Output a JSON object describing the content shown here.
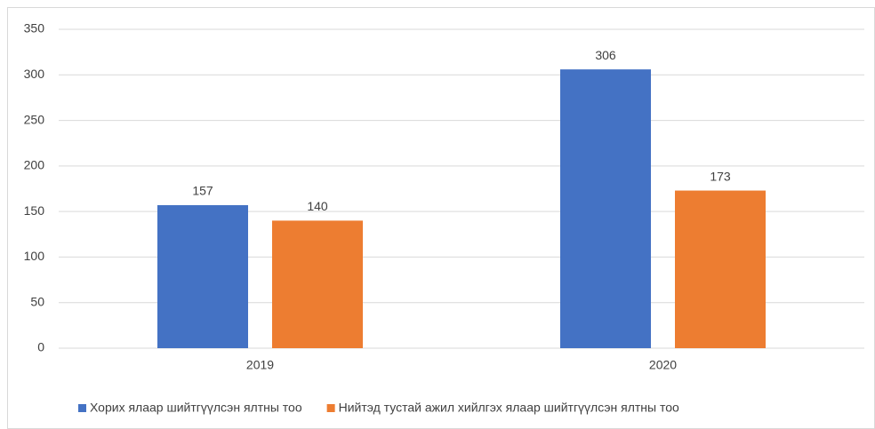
{
  "chart_data": {
    "type": "bar",
    "categories": [
      "2019",
      "2020"
    ],
    "series": [
      {
        "name": "Хорих ялаар шийтгүүлсэн ялтны тоо",
        "color": "#4472c4",
        "values": [
          157,
          306
        ]
      },
      {
        "name": "Нийтэд тустай ажил хийлгэх ялаар шийтгүүлсэн ялтны тоо",
        "color": "#ed7d31",
        "values": [
          140,
          173
        ]
      }
    ],
    "ylim": [
      0,
      350
    ],
    "yticks": [
      0,
      50,
      100,
      150,
      200,
      250,
      300,
      350
    ],
    "grid": true,
    "legend": "bottom"
  }
}
